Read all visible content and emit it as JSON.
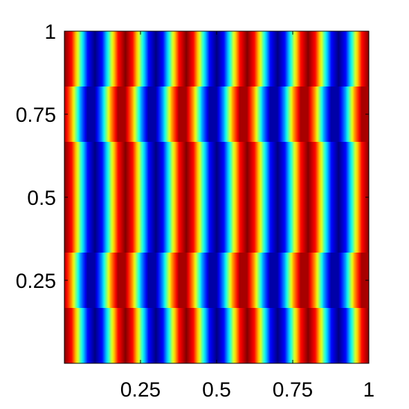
{
  "chart_data": {
    "type": "heatmap",
    "xlim": [
      0,
      1
    ],
    "ylim": [
      0,
      1
    ],
    "xticks": [
      0.25,
      0.5,
      0.75,
      1
    ],
    "yticks": [
      0.25,
      0.5,
      0.75,
      1
    ],
    "colormap": "jet",
    "clim": [
      -1,
      1
    ],
    "z": [
      [
        1,
        0.71,
        0,
        -0.71,
        -1,
        -0.71,
        0,
        0.71,
        1,
        0.71,
        0,
        -0.71,
        -1,
        -0.71,
        0,
        0.71,
        1,
        0.71,
        0,
        -0.71,
        -1,
        -0.71,
        0,
        0.71,
        1,
        0.71,
        0,
        -0.71,
        -1,
        -0.71,
        0,
        0.71,
        1,
        0.71,
        0,
        -0.71,
        -1,
        -0.71,
        0,
        0.71,
        1
      ],
      [
        0.92,
        0.38,
        -0.38,
        -0.92,
        -0.92,
        -0.38,
        0.38,
        0.92,
        0.92,
        0.38,
        -0.38,
        -0.92,
        -0.92,
        -0.38,
        0.38,
        0.92,
        0.92,
        0.38,
        -0.38,
        -0.92,
        -0.92,
        -0.38,
        0.38,
        0.92,
        0.92,
        0.38,
        -0.38,
        -0.92,
        -0.92,
        -0.38,
        0.38,
        0.92,
        0.92,
        0.38,
        -0.38,
        -0.92,
        -0.92,
        -0.38,
        0.38,
        0.92,
        0.92
      ],
      [
        1,
        0.71,
        0,
        -0.71,
        -1,
        -0.71,
        0,
        0.71,
        1,
        0.71,
        0,
        -0.71,
        -1,
        -0.71,
        0,
        0.71,
        1,
        0.71,
        0,
        -0.71,
        -1,
        -0.71,
        0,
        0.71,
        1,
        0.71,
        0,
        -0.71,
        -1,
        -0.71,
        0,
        0.71,
        1,
        0.71,
        0,
        -0.71,
        -1,
        -0.71,
        0,
        0.71,
        1
      ],
      [
        1,
        0.71,
        0,
        -0.71,
        -1,
        -0.71,
        0,
        0.71,
        1,
        0.71,
        0,
        -0.71,
        -1,
        -0.71,
        0,
        0.71,
        1,
        0.71,
        0,
        -0.71,
        -1,
        -0.71,
        0,
        0.71,
        1,
        0.71,
        0,
        -0.71,
        -1,
        -0.71,
        0,
        0.71,
        1,
        0.71,
        0,
        -0.71,
        -1,
        -0.71,
        0,
        0.71,
        1
      ],
      [
        0.92,
        0.38,
        -0.38,
        -0.92,
        -0.92,
        -0.38,
        0.38,
        0.92,
        0.92,
        0.38,
        -0.38,
        -0.92,
        -0.92,
        -0.38,
        0.38,
        0.92,
        0.92,
        0.38,
        -0.38,
        -0.92,
        -0.92,
        -0.38,
        0.38,
        0.92,
        0.92,
        0.38,
        -0.38,
        -0.92,
        -0.92,
        -0.38,
        0.38,
        0.92,
        0.92,
        0.38,
        -0.38,
        -0.92,
        -0.92,
        -0.38,
        0.38,
        0.92,
        0.92
      ],
      [
        1,
        0.71,
        0,
        -0.71,
        -1,
        -0.71,
        0,
        0.71,
        1,
        0.71,
        0,
        -0.71,
        -1,
        -0.71,
        0,
        0.71,
        1,
        0.71,
        0,
        -0.71,
        -1,
        -0.71,
        0,
        0.71,
        1,
        0.71,
        0,
        -0.71,
        -1,
        -0.71,
        0,
        0.71,
        1,
        0.71,
        0,
        -0.71,
        -1,
        -0.71,
        0,
        0.71,
        1
      ]
    ]
  }
}
